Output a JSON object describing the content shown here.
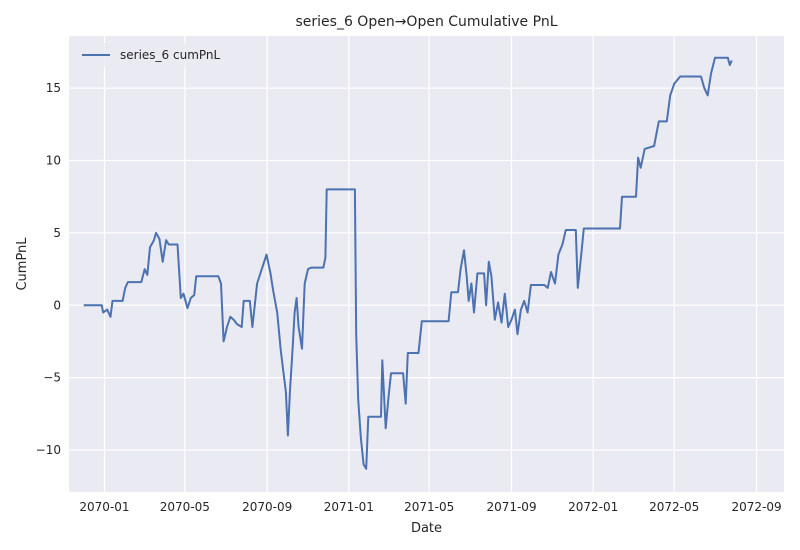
{
  "chart_data": {
    "type": "line",
    "title": "series_6 Open→Open Cumulative PnL",
    "xlabel": "Date",
    "ylabel": "CumPnL",
    "x_type": "date",
    "xlim": [
      "2069-11-09",
      "2072-10-12"
    ],
    "ylim": [
      -12.9,
      18.6
    ],
    "x_ticks": [
      "2070-01",
      "2070-05",
      "2070-09",
      "2071-01",
      "2071-05",
      "2071-09",
      "2072-01",
      "2072-05",
      "2072-09"
    ],
    "y_ticks": [
      -10,
      -5,
      0,
      5,
      10,
      15
    ],
    "grid": true,
    "legend_position": "top-left",
    "colors": {
      "line": "#4c72b0",
      "plot_bg": "#eaeaf2",
      "grid": "#ffffff"
    },
    "series": [
      {
        "name": "series_6 cumPnL",
        "points": [
          [
            "2069-12-01",
            0.0
          ],
          [
            "2069-12-28",
            0.0
          ],
          [
            "2069-12-30",
            -0.5
          ],
          [
            "2070-01-05",
            -0.3
          ],
          [
            "2070-01-10",
            -0.8
          ],
          [
            "2070-01-13",
            0.3
          ],
          [
            "2070-01-28",
            0.3
          ],
          [
            "2070-02-01",
            1.2
          ],
          [
            "2070-02-05",
            1.6
          ],
          [
            "2070-02-25",
            1.6
          ],
          [
            "2070-03-02",
            2.5
          ],
          [
            "2070-03-06",
            2.1
          ],
          [
            "2070-03-10",
            4.0
          ],
          [
            "2070-03-16",
            4.5
          ],
          [
            "2070-03-19",
            5.0
          ],
          [
            "2070-03-24",
            4.6
          ],
          [
            "2070-03-29",
            3.0
          ],
          [
            "2070-04-03",
            4.5
          ],
          [
            "2070-04-07",
            4.2
          ],
          [
            "2070-04-20",
            4.2
          ],
          [
            "2070-04-25",
            0.5
          ],
          [
            "2070-04-29",
            0.8
          ],
          [
            "2070-05-05",
            -0.2
          ],
          [
            "2070-05-10",
            0.5
          ],
          [
            "2070-05-15",
            0.7
          ],
          [
            "2070-05-18",
            2.0
          ],
          [
            "2070-06-20",
            2.0
          ],
          [
            "2070-06-24",
            1.5
          ],
          [
            "2070-06-28",
            -2.5
          ],
          [
            "2070-07-03",
            -1.5
          ],
          [
            "2070-07-08",
            -0.8
          ],
          [
            "2070-07-13",
            -1.0
          ],
          [
            "2070-07-18",
            -1.3
          ],
          [
            "2070-07-25",
            -1.5
          ],
          [
            "2070-07-28",
            0.3
          ],
          [
            "2070-08-06",
            0.3
          ],
          [
            "2070-08-10",
            -1.5
          ],
          [
            "2070-08-17",
            1.5
          ],
          [
            "2070-08-24",
            2.5
          ],
          [
            "2070-08-31",
            3.5
          ],
          [
            "2070-09-06",
            2.2
          ],
          [
            "2070-09-10",
            1.0
          ],
          [
            "2070-09-16",
            -0.5
          ],
          [
            "2070-09-21",
            -3.0
          ],
          [
            "2070-09-25",
            -4.5
          ],
          [
            "2070-09-29",
            -6.0
          ],
          [
            "2070-10-02",
            -9.0
          ],
          [
            "2070-10-05",
            -6.0
          ],
          [
            "2070-10-09",
            -3.0
          ],
          [
            "2070-10-12",
            -0.5
          ],
          [
            "2070-10-15",
            0.5
          ],
          [
            "2070-10-18",
            -1.5
          ],
          [
            "2070-10-23",
            -3.0
          ],
          [
            "2070-10-27",
            1.5
          ],
          [
            "2070-11-01",
            2.5
          ],
          [
            "2070-11-06",
            2.6
          ],
          [
            "2070-11-24",
            2.6
          ],
          [
            "2070-11-27",
            3.3
          ],
          [
            "2070-11-29",
            8.0
          ],
          [
            "2070-12-09",
            8.0
          ],
          [
            "2071-01-10",
            8.0
          ],
          [
            "2071-01-12",
            -2.0
          ],
          [
            "2071-01-15",
            -6.5
          ],
          [
            "2071-01-19",
            -9.2
          ],
          [
            "2071-01-23",
            -11.0
          ],
          [
            "2071-01-27",
            -11.3
          ],
          [
            "2071-01-30",
            -7.7
          ],
          [
            "2071-02-18",
            -7.7
          ],
          [
            "2071-02-20",
            -3.8
          ],
          [
            "2071-02-25",
            -8.5
          ],
          [
            "2071-03-01",
            -6.5
          ],
          [
            "2071-03-05",
            -4.7
          ],
          [
            "2071-03-23",
            -4.7
          ],
          [
            "2071-03-27",
            -6.8
          ],
          [
            "2071-03-30",
            -3.3
          ],
          [
            "2071-04-15",
            -3.3
          ],
          [
            "2071-04-20",
            -1.1
          ],
          [
            "2071-05-30",
            -1.1
          ],
          [
            "2071-06-03",
            0.9
          ],
          [
            "2071-06-13",
            0.9
          ],
          [
            "2071-06-17",
            2.5
          ],
          [
            "2071-06-22",
            3.8
          ],
          [
            "2071-06-26",
            2.0
          ],
          [
            "2071-06-29",
            0.3
          ],
          [
            "2071-07-03",
            1.5
          ],
          [
            "2071-07-07",
            -0.5
          ],
          [
            "2071-07-12",
            2.2
          ],
          [
            "2071-07-22",
            2.2
          ],
          [
            "2071-07-25",
            0.0
          ],
          [
            "2071-07-29",
            3.0
          ],
          [
            "2071-08-02",
            2.0
          ],
          [
            "2071-08-07",
            -1.0
          ],
          [
            "2071-08-12",
            0.2
          ],
          [
            "2071-08-17",
            -1.2
          ],
          [
            "2071-08-22",
            0.8
          ],
          [
            "2071-08-27",
            -1.5
          ],
          [
            "2071-09-01",
            -1.0
          ],
          [
            "2071-09-06",
            -0.3
          ],
          [
            "2071-09-10",
            -2.0
          ],
          [
            "2071-09-15",
            -0.3
          ],
          [
            "2071-09-20",
            0.3
          ],
          [
            "2071-09-25",
            -0.5
          ],
          [
            "2071-09-30",
            1.4
          ],
          [
            "2071-10-20",
            1.4
          ],
          [
            "2071-10-25",
            1.2
          ],
          [
            "2071-10-30",
            2.3
          ],
          [
            "2071-11-05",
            1.5
          ],
          [
            "2071-11-10",
            3.5
          ],
          [
            "2071-11-16",
            4.2
          ],
          [
            "2071-11-21",
            5.2
          ],
          [
            "2071-12-06",
            5.2
          ],
          [
            "2071-12-09",
            1.2
          ],
          [
            "2071-12-13",
            3.0
          ],
          [
            "2071-12-18",
            5.3
          ],
          [
            "2072-02-10",
            5.3
          ],
          [
            "2072-02-13",
            7.5
          ],
          [
            "2072-03-05",
            7.5
          ],
          [
            "2072-03-08",
            10.2
          ],
          [
            "2072-03-12",
            9.5
          ],
          [
            "2072-03-18",
            10.8
          ],
          [
            "2072-04-01",
            11.0
          ],
          [
            "2072-04-08",
            12.7
          ],
          [
            "2072-04-20",
            12.7
          ],
          [
            "2072-04-25",
            14.5
          ],
          [
            "2072-05-01",
            15.3
          ],
          [
            "2072-05-10",
            15.8
          ],
          [
            "2072-06-10",
            15.8
          ],
          [
            "2072-06-15",
            15.0
          ],
          [
            "2072-06-20",
            14.5
          ],
          [
            "2072-06-25",
            16.0
          ],
          [
            "2072-07-01",
            17.1
          ],
          [
            "2072-07-20",
            17.1
          ],
          [
            "2072-07-23",
            16.6
          ],
          [
            "2072-07-26",
            16.9
          ]
        ]
      }
    ]
  }
}
